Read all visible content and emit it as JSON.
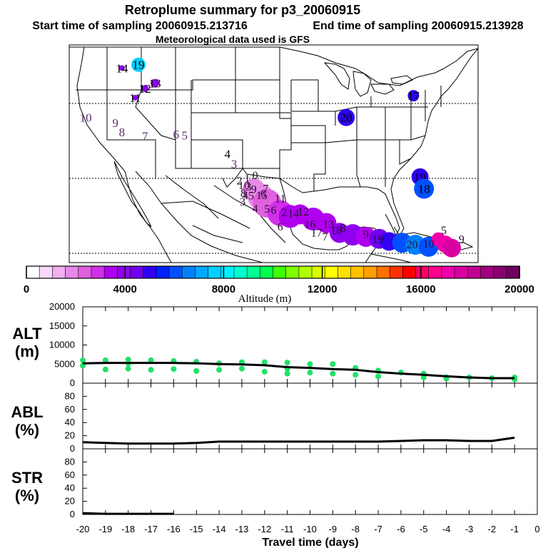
{
  "header": {
    "title": "Retroplume summary for p3_20060915",
    "start": "Start time of sampling 20060915.213716",
    "end": "End time of sampling 20060915.213928",
    "met": "Meteorological data used is GFS"
  },
  "map_points": [
    {
      "label": "19",
      "lon": -115.5,
      "lat": 47.0,
      "alt": 7800,
      "size": 10
    },
    {
      "label": "14",
      "lon": -118.0,
      "lat": 46.5,
      "alt": 3800,
      "size": 4
    },
    {
      "label": "13",
      "lon": -113.0,
      "lat": 44.2,
      "alt": 3800,
      "size": 6
    },
    {
      "label": "12",
      "lon": -114.5,
      "lat": 43.4,
      "alt": 3800,
      "size": 5
    },
    {
      "label": "11",
      "lon": -116.0,
      "lat": 42.0,
      "alt": 3800,
      "size": 4
    },
    {
      "label": "10",
      "lon": -123.5,
      "lat": 39.0,
      "alt": 0,
      "size": 0
    },
    {
      "label": "9",
      "lon": -119.0,
      "lat": 38.2,
      "alt": 3000,
      "size": 0
    },
    {
      "label": "8",
      "lon": -118.0,
      "lat": 36.8,
      "alt": 3000,
      "size": 0
    },
    {
      "label": "7",
      "lon": -114.5,
      "lat": 36.2,
      "alt": 3000,
      "size": 0
    },
    {
      "label": "6",
      "lon": -109.8,
      "lat": 36.5,
      "alt": 3000,
      "size": 0
    },
    {
      "label": "5",
      "lon": -108.5,
      "lat": 36.3,
      "alt": 3000,
      "size": 0
    },
    {
      "label": "4",
      "lon": -102.0,
      "lat": 33.5,
      "alt": 3500,
      "size": 0
    },
    {
      "label": "3",
      "lon": -101.0,
      "lat": 32.0,
      "alt": 3000,
      "size": 0
    },
    {
      "label": "20",
      "lon": -84.0,
      "lat": 39.0,
      "alt": 5200,
      "size": 12
    },
    {
      "label": "17",
      "lon": -73.8,
      "lat": 42.3,
      "alt": 5200,
      "size": 8
    },
    {
      "label": "19",
      "lon": -72.8,
      "lat": 30.0,
      "alt": 5200,
      "size": 12
    },
    {
      "label": "18",
      "lon": -72.2,
      "lat": 28.2,
      "alt": 6000,
      "size": 14
    }
  ],
  "caribbean_points": [
    {
      "lon": -98.0,
      "lat": 28.0,
      "alt": 1800,
      "size": 16
    },
    {
      "lon": -97.0,
      "lat": 27.0,
      "alt": 2000,
      "size": 18
    },
    {
      "lon": -96.0,
      "lat": 26.0,
      "alt": 2500,
      "size": 20
    },
    {
      "lon": -94.0,
      "lat": 24.5,
      "alt": 3000,
      "size": 18
    },
    {
      "lon": -92.5,
      "lat": 24.0,
      "alt": 3200,
      "size": 16
    },
    {
      "lon": -91.0,
      "lat": 24.3,
      "alt": 3400,
      "size": 14
    },
    {
      "lon": -89.0,
      "lat": 23.6,
      "alt": 3500,
      "size": 16
    },
    {
      "lon": -87.0,
      "lat": 23.0,
      "alt": 3600,
      "size": 14
    },
    {
      "lon": -85.0,
      "lat": 21.5,
      "alt": 3700,
      "size": 14
    },
    {
      "lon": -83.0,
      "lat": 21.2,
      "alt": 3800,
      "size": 15
    },
    {
      "lon": -81.0,
      "lat": 20.9,
      "alt": 3600,
      "size": 14
    },
    {
      "lon": -79.0,
      "lat": 20.6,
      "alt": 4400,
      "size": 14
    },
    {
      "lon": -77.5,
      "lat": 20.2,
      "alt": 5000,
      "size": 13
    },
    {
      "lon": -75.5,
      "lat": 20.0,
      "alt": 6000,
      "size": 14
    },
    {
      "lon": -73.5,
      "lat": 19.7,
      "alt": 6500,
      "size": 14
    },
    {
      "lon": -71.5,
      "lat": 19.4,
      "alt": 6200,
      "size": 14
    },
    {
      "lon": -70.0,
      "lat": 20.5,
      "alt": 17200,
      "size": 10
    },
    {
      "lon": -69.0,
      "lat": 19.8,
      "alt": 17300,
      "size": 12
    },
    {
      "lon": -68.0,
      "lat": 19.2,
      "alt": 17500,
      "size": 13
    }
  ],
  "caribbean_labels": [
    {
      "label": "1",
      "lon": -99.0,
      "lat": 29.8
    },
    {
      "label": "2",
      "lon": -100.2,
      "lat": 29.5
    },
    {
      "label": "0",
      "lon": -97.8,
      "lat": 30.3
    },
    {
      "label": "3",
      "lon": -98.8,
      "lat": 28.6
    },
    {
      "label": "4",
      "lon": -99.3,
      "lat": 27.3
    },
    {
      "label": "5",
      "lon": -98.4,
      "lat": 27.2
    },
    {
      "label": "6",
      "lon": -96.6,
      "lat": 27.5
    },
    {
      "label": "7",
      "lon": -96.2,
      "lat": 28.3
    },
    {
      "label": "8",
      "lon": -99.6,
      "lat": 27.6
    },
    {
      "label": "9",
      "lon": -98.0,
      "lat": 28.2
    },
    {
      "label": "10",
      "lon": -99.5,
      "lat": 28.8
    },
    {
      "label": "11",
      "lon": -94.0,
      "lat": 26.8
    },
    {
      "label": "12",
      "lon": -90.5,
      "lat": 24.8
    },
    {
      "label": "13",
      "lon": -86.7,
      "lat": 22.9
    },
    {
      "label": "14",
      "lon": -92.0,
      "lat": 24.5
    },
    {
      "label": "15",
      "lon": -96.8,
      "lat": 27.3
    },
    {
      "label": "16",
      "lon": -89.5,
      "lat": 22.9
    },
    {
      "label": "17",
      "lon": -88.5,
      "lat": 21.6
    },
    {
      "label": "18",
      "lon": -85.5,
      "lat": 22.0
    },
    {
      "label": "19",
      "lon": -79.2,
      "lat": 20.6
    },
    {
      "label": "20",
      "lon": -74.0,
      "lat": 19.8
    },
    {
      "label": "2",
      "lon": -93.4,
      "lat": 24.7
    },
    {
      "label": "3",
      "lon": -99.7,
      "lat": 26.3
    },
    {
      "label": "4",
      "lon": -97.8,
      "lat": 25.3
    },
    {
      "label": "5",
      "lon": -96.0,
      "lat": 25.2
    },
    {
      "label": "6",
      "lon": -95.0,
      "lat": 25.0
    },
    {
      "label": "6",
      "lon": -94.0,
      "lat": 22.5
    },
    {
      "label": "7",
      "lon": -87.2,
      "lat": 21.0
    },
    {
      "label": "8",
      "lon": -84.5,
      "lat": 22.3
    },
    {
      "label": "9",
      "lon": -81.0,
      "lat": 21.4
    },
    {
      "label": "10",
      "lon": -71.5,
      "lat": 19.9
    },
    {
      "label": "5",
      "lon": -69.2,
      "lat": 22.0
    },
    {
      "label": "9",
      "lon": -66.5,
      "lat": 20.6
    }
  ],
  "colorbar": {
    "ticks": [
      "0",
      "4000",
      "8000",
      "12000",
      "16000",
      "20000"
    ],
    "label": "Altitude (m)",
    "colors": [
      "#ffffff",
      "#f8d8f8",
      "#f0b0f0",
      "#e888e8",
      "#e060e0",
      "#d030e8",
      "#b000f0",
      "#9000f0",
      "#7000f0",
      "#3000f0",
      "#0020ff",
      "#0050ff",
      "#0080ff",
      "#00a8ff",
      "#00d0ff",
      "#00f0ff",
      "#00ffd0",
      "#00ff90",
      "#00ff50",
      "#40ff00",
      "#80ff00",
      "#b0ff00",
      "#d8ff00",
      "#ffff00",
      "#ffe000",
      "#ffc000",
      "#ffa000",
      "#ff7000",
      "#ff3000",
      "#ff0000",
      "#ff0060",
      "#ff0090",
      "#f000a8",
      "#d800a0",
      "#c00090",
      "#a00080",
      "#880070",
      "#700060"
    ]
  },
  "chart_data": [
    {
      "type": "scatter",
      "title": "",
      "ylabel": "ALT\n(m)",
      "ylabel_line1": "ALT",
      "ylabel_line2": "(m)",
      "xlabel": "Travel time (days)",
      "x": [
        -20,
        -19,
        -18,
        -17,
        -16,
        -15,
        -14,
        -13,
        -12,
        -11,
        -10,
        -9,
        -8,
        -7,
        -6,
        -5,
        -4,
        -3,
        -2,
        -1
      ],
      "ylim": [
        0,
        20000
      ],
      "yticks": [
        "20000",
        "15000",
        "10000",
        "5000",
        "0"
      ],
      "median_line": [
        5200,
        5300,
        5300,
        5300,
        5300,
        5200,
        5000,
        4900,
        4700,
        4200,
        4000,
        3700,
        3500,
        2900,
        2500,
        2200,
        1800,
        1500,
        1300,
        1300
      ],
      "points": [
        [
          -20,
          6000
        ],
        [
          -20,
          4600
        ],
        [
          -19,
          6000
        ],
        [
          -19,
          3600
        ],
        [
          -18,
          6200
        ],
        [
          -18,
          3800
        ],
        [
          -18,
          5200
        ],
        [
          -17,
          6000
        ],
        [
          -17,
          3500
        ],
        [
          -16,
          5800
        ],
        [
          -16,
          3700
        ],
        [
          -15,
          5600
        ],
        [
          -15,
          3200
        ],
        [
          -14,
          5200
        ],
        [
          -14,
          3500
        ],
        [
          -13,
          5500
        ],
        [
          -13,
          3800
        ],
        [
          -12,
          5500
        ],
        [
          -12,
          3000
        ],
        [
          -11,
          5400
        ],
        [
          -11,
          2500
        ],
        [
          -11,
          3800
        ],
        [
          -10,
          5000
        ],
        [
          -10,
          2800
        ],
        [
          -9,
          5000
        ],
        [
          -9,
          2500
        ],
        [
          -8,
          4000
        ],
        [
          -8,
          2200
        ],
        [
          -7,
          3300
        ],
        [
          -7,
          1800
        ],
        [
          -6,
          2800
        ],
        [
          -5,
          2500
        ],
        [
          -5,
          1500
        ],
        [
          -4,
          1600
        ],
        [
          -4,
          1200
        ],
        [
          -3,
          1500
        ],
        [
          -2,
          1300
        ],
        [
          -1,
          1500
        ],
        [
          -1,
          1000
        ]
      ]
    },
    {
      "type": "line",
      "ylabel_line1": "ABL",
      "ylabel_line2": "(%)",
      "x": [
        -20,
        -19,
        -18,
        -17,
        -16,
        -15,
        -14,
        -13,
        -12,
        -11,
        -10,
        -9,
        -8,
        -7,
        -6,
        -5,
        -4,
        -3,
        -2,
        -1
      ],
      "values": [
        10,
        9,
        8,
        8,
        8,
        9,
        11,
        11,
        11,
        11,
        11,
        11,
        11,
        11,
        12,
        13,
        13,
        12,
        12,
        17
      ],
      "ylim": [
        0,
        100
      ],
      "yticks": [
        "80",
        "60",
        "40",
        "20",
        "0"
      ]
    },
    {
      "type": "line",
      "ylabel_line1": "STR",
      "ylabel_line2": "(%)",
      "x": [
        -20,
        -19,
        -18,
        -17,
        -16
      ],
      "values": [
        2,
        1,
        1,
        1,
        1
      ],
      "ylim": [
        0,
        100
      ],
      "yticks": [
        "80",
        "60",
        "40",
        "20",
        "0"
      ],
      "xticks": [
        "-20",
        "-19",
        "-18",
        "-17",
        "-16",
        "-15",
        "-14",
        "-13",
        "-12",
        "-11",
        "-10",
        "-9",
        "-8",
        "-7",
        "-6",
        "-5",
        "-4",
        "-3",
        "-2",
        "-1",
        "0"
      ]
    }
  ]
}
